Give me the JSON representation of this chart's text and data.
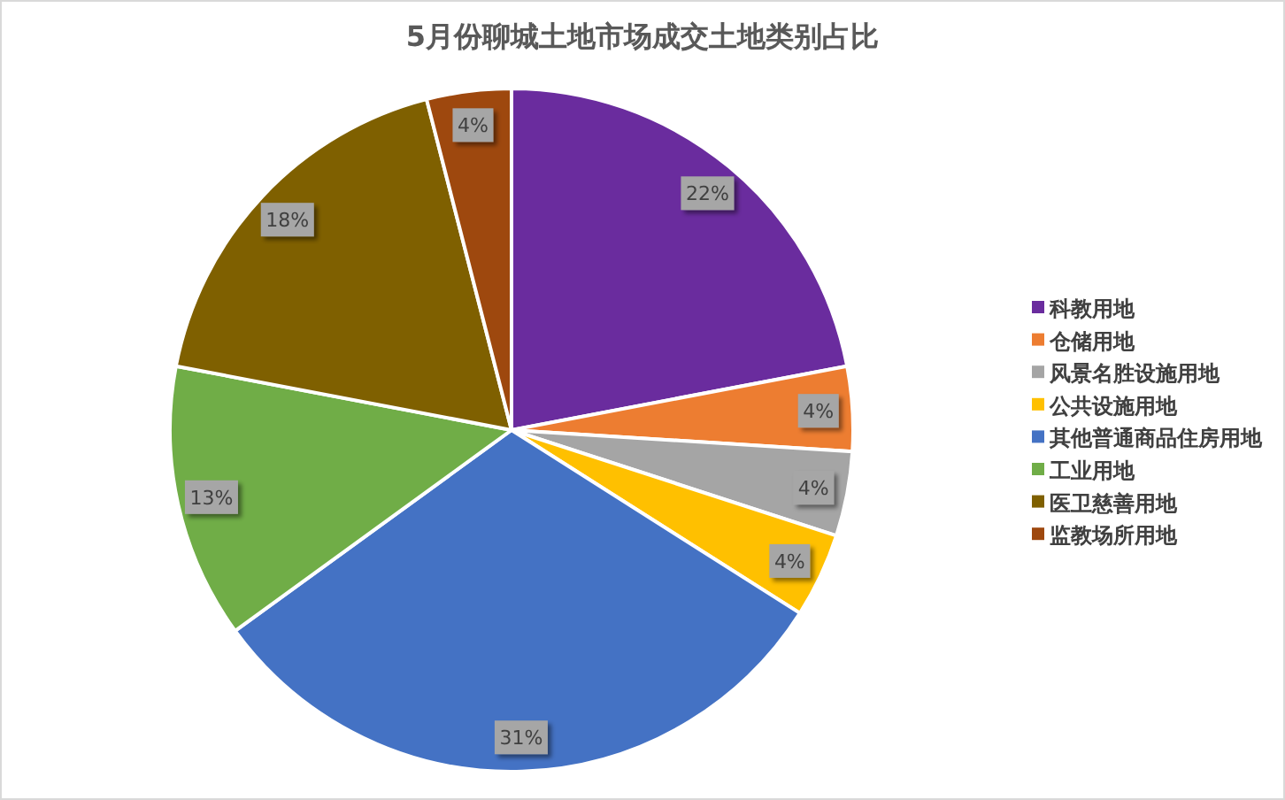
{
  "chart_data": {
    "type": "pie",
    "title": "5月份聊城土地市场成交土地类别占比",
    "categories": [
      "科教用地",
      "仓储用地",
      "风景名胜设施用地",
      "公共设施用地",
      "其他普通商品住房用地",
      "工业用地",
      "医卫慈善用地",
      "监教场所用地"
    ],
    "values": [
      22,
      4,
      4,
      4,
      31,
      13,
      18,
      4
    ],
    "colors": [
      "#6a2c9e",
      "#ed7d31",
      "#a5a5a5",
      "#ffc000",
      "#4472c4",
      "#70ad47",
      "#7f6000",
      "#9e480e"
    ],
    "value_labels": [
      "22%",
      "4%",
      "4%",
      "4%",
      "31%",
      "13%",
      "18%",
      "4%"
    ],
    "legend": "right"
  }
}
